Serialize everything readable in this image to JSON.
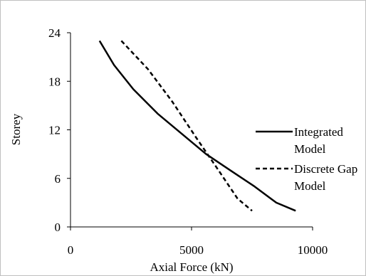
{
  "chart_data": {
    "type": "line",
    "xlabel": "Axial Force (kN)",
    "ylabel": "Storey",
    "xlim": [
      0,
      10000
    ],
    "ylim": [
      0,
      24
    ],
    "x_ticks": [
      "0",
      "5000",
      "10000"
    ],
    "y_ticks": [
      "0",
      "6",
      "12",
      "18",
      "24"
    ],
    "grid": false,
    "legend_position": "right",
    "series": [
      {
        "name": "Integrated Model",
        "name_lines": [
          "Integrated",
          "Model"
        ],
        "style": "solid",
        "color": "#000000",
        "points": [
          [
            1200,
            23
          ],
          [
            1800,
            20
          ],
          [
            2600,
            17
          ],
          [
            3600,
            14
          ],
          [
            4600,
            11.5
          ],
          [
            5600,
            9
          ],
          [
            6600,
            7
          ],
          [
            7600,
            5
          ],
          [
            8500,
            3
          ],
          [
            9300,
            2
          ]
        ]
      },
      {
        "name": "Discrete Gap Model",
        "name_lines": [
          "Discrete Gap",
          "Model"
        ],
        "style": "dashed",
        "color": "#000000",
        "points": [
          [
            2100,
            23
          ],
          [
            3200,
            19.5
          ],
          [
            4200,
            15.5
          ],
          [
            5200,
            11
          ],
          [
            6000,
            7.5
          ],
          [
            6900,
            3.5
          ],
          [
            7500,
            2
          ]
        ]
      }
    ]
  }
}
